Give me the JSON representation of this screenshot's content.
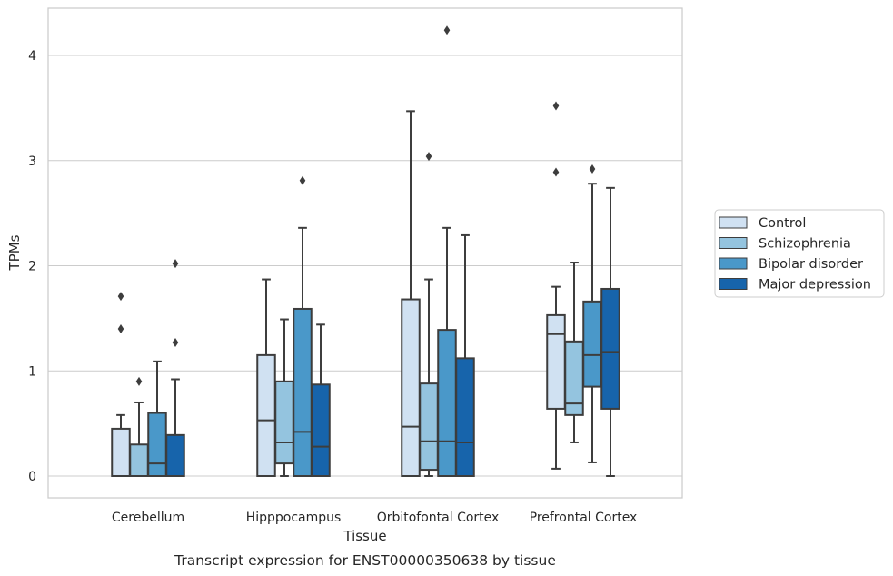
{
  "caption": "Transcript expression for ENST00000350638 by tissue",
  "chart_data": {
    "type": "box",
    "xlabel": "Tissue",
    "ylabel": "TPMs",
    "ylim": [
      -0.2,
      4.45
    ],
    "yticks": [
      0,
      1,
      2,
      3,
      4
    ],
    "grid": "horizontal",
    "legend_position": "right",
    "categories": [
      "Cerebellum",
      "Hipppocampus",
      "Orbitofontal Cortex",
      "Prefrontal Cortex"
    ],
    "series": [
      {
        "name": "Control",
        "color": "#d0e1f2",
        "boxes": [
          {
            "whisker_low": 0,
            "q1": 0,
            "median": 0,
            "q3": 0.45,
            "whisker_high": 0.58,
            "outliers": [
              1.4,
              1.71
            ]
          },
          {
            "whisker_low": 0,
            "q1": 0,
            "median": 0.53,
            "q3": 1.15,
            "whisker_high": 1.87,
            "outliers": []
          },
          {
            "whisker_low": 0,
            "q1": 0,
            "median": 0.47,
            "q3": 1.68,
            "whisker_high": 3.47,
            "outliers": []
          },
          {
            "whisker_low": 0.07,
            "q1": 0.64,
            "median": 1.35,
            "q3": 1.53,
            "whisker_high": 1.8,
            "outliers": [
              2.89,
              3.52
            ]
          }
        ]
      },
      {
        "name": "Schizophrenia",
        "color": "#94c4df",
        "boxes": [
          {
            "whisker_low": 0,
            "q1": 0,
            "median": 0,
            "q3": 0.3,
            "whisker_high": 0.7,
            "outliers": [
              0.9
            ]
          },
          {
            "whisker_low": 0,
            "q1": 0.12,
            "median": 0.32,
            "q3": 0.9,
            "whisker_high": 1.49,
            "outliers": []
          },
          {
            "whisker_low": 0,
            "q1": 0.06,
            "median": 0.33,
            "q3": 0.88,
            "whisker_high": 1.87,
            "outliers": [
              3.04
            ]
          },
          {
            "whisker_low": 0.32,
            "q1": 0.58,
            "median": 0.69,
            "q3": 1.28,
            "whisker_high": 2.03,
            "outliers": []
          }
        ]
      },
      {
        "name": "Bipolar disorder",
        "color": "#4a98c9",
        "boxes": [
          {
            "whisker_low": 0,
            "q1": 0,
            "median": 0.12,
            "q3": 0.6,
            "whisker_high": 1.09,
            "outliers": []
          },
          {
            "whisker_low": 0,
            "q1": 0,
            "median": 0.42,
            "q3": 1.59,
            "whisker_high": 2.36,
            "outliers": [
              2.81
            ]
          },
          {
            "whisker_low": 0,
            "q1": 0,
            "median": 0.33,
            "q3": 1.39,
            "whisker_high": 2.36,
            "outliers": [
              4.24
            ]
          },
          {
            "whisker_low": 0.13,
            "q1": 0.85,
            "median": 1.15,
            "q3": 1.66,
            "whisker_high": 2.78,
            "outliers": [
              2.92
            ]
          }
        ]
      },
      {
        "name": "Major depression",
        "color": "#1764ab",
        "boxes": [
          {
            "whisker_low": 0,
            "q1": 0,
            "median": 0,
            "q3": 0.39,
            "whisker_high": 0.92,
            "outliers": [
              1.27,
              2.02
            ]
          },
          {
            "whisker_low": 0,
            "q1": 0,
            "median": 0.28,
            "q3": 0.87,
            "whisker_high": 1.44,
            "outliers": []
          },
          {
            "whisker_low": 0,
            "q1": 0,
            "median": 0.32,
            "q3": 1.12,
            "whisker_high": 2.29,
            "outliers": []
          },
          {
            "whisker_low": 0,
            "q1": 0.64,
            "median": 1.18,
            "q3": 1.78,
            "whisker_high": 2.74,
            "outliers": []
          }
        ]
      }
    ]
  }
}
